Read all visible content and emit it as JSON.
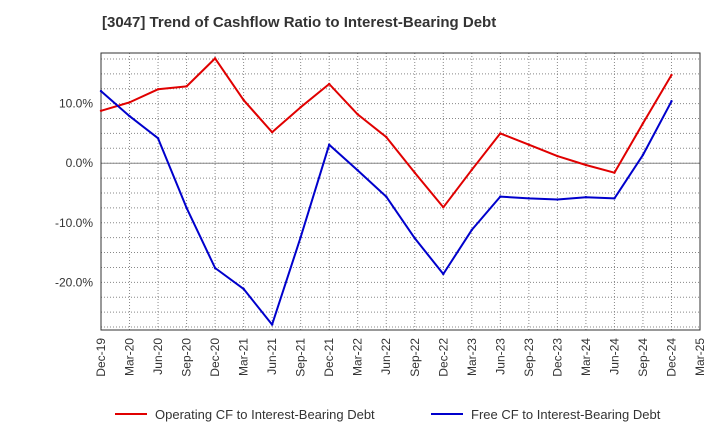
{
  "title": "[3047]  Trend of Cashflow Ratio to Interest-Bearing Debt",
  "colors": {
    "operating": "#e00000",
    "free": "#0000cc",
    "grid": "#888888",
    "axis": "#333333"
  },
  "chart_data": {
    "type": "line",
    "title": "[3047]  Trend of Cashflow Ratio to Interest-Bearing Debt",
    "xlabel": "",
    "ylabel": "",
    "x": [
      "Dec-19",
      "Mar-20",
      "Jun-20",
      "Sep-20",
      "Dec-20",
      "Mar-21",
      "Jun-21",
      "Sep-21",
      "Dec-21",
      "Mar-22",
      "Jun-22",
      "Sep-22",
      "Dec-22",
      "Mar-23",
      "Jun-23",
      "Sep-23",
      "Dec-23",
      "Mar-24",
      "Jun-24",
      "Sep-24",
      "Dec-24",
      "Mar-25"
    ],
    "ylim": [
      -28.0,
      18.5
    ],
    "yticks": [
      10,
      0,
      -10,
      -20
    ],
    "ytick_labels": [
      "10.0%",
      "0.0%",
      "-10.0%",
      "-20.0%"
    ],
    "grid": true,
    "legend_position": "bottom",
    "series": [
      {
        "name": "Operating CF to Interest-Bearing Debt",
        "color": "#e00000",
        "values": [
          8.8,
          10.2,
          12.4,
          12.9,
          17.6,
          10.6,
          5.2,
          9.4,
          13.3,
          8.2,
          4.4,
          -1.6,
          -7.4,
          -1.1,
          5.0,
          3.1,
          1.2,
          -0.3,
          -1.6,
          6.7,
          14.8,
          null
        ]
      },
      {
        "name": "Free CF to Interest-Bearing Debt",
        "color": "#0000cc",
        "values": [
          12.1,
          7.9,
          4.2,
          -7.5,
          -17.6,
          -21.1,
          -27.1,
          -12.4,
          3.1,
          -1.2,
          -5.6,
          -12.6,
          -18.6,
          -11.2,
          -5.6,
          -5.9,
          -6.1,
          -5.7,
          -5.9,
          1.4,
          10.4,
          null
        ]
      }
    ]
  }
}
